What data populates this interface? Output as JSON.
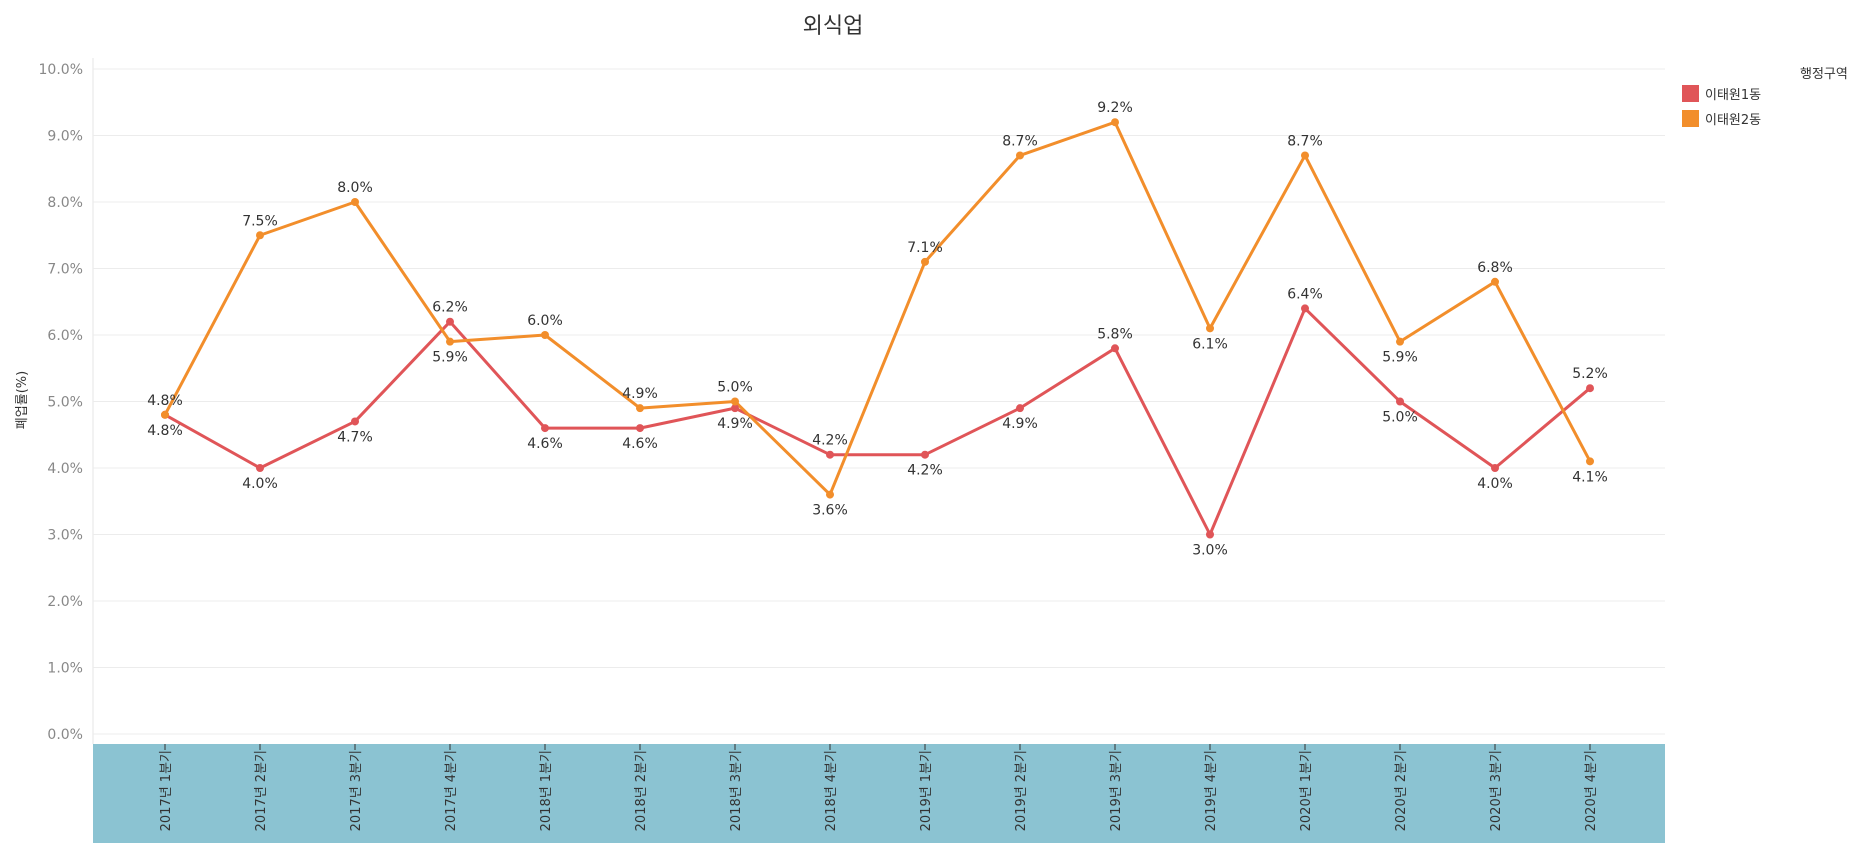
{
  "chart_data": {
    "type": "line",
    "title": "외식업",
    "ylabel": "폐업률(%)",
    "xlabel": "",
    "ylim": [
      0,
      10
    ],
    "yticks": [
      "0.0%",
      "1.0%",
      "2.0%",
      "3.0%",
      "4.0%",
      "5.0%",
      "6.0%",
      "7.0%",
      "8.0%",
      "9.0%",
      "10.0%"
    ],
    "grid": true,
    "legend_title": "행정구역",
    "legend_position": "top-right",
    "categories": [
      "2017년 1분기",
      "2017년 2분기",
      "2017년 3분기",
      "2017년 4분기",
      "2018년 1분기",
      "2018년 2분기",
      "2018년 3분기",
      "2018년 4분기",
      "2019년 1분기",
      "2019년 2분기",
      "2019년 3분기",
      "2019년 4분기",
      "2020년 1분기",
      "2020년 2분기",
      "2020년 3분기",
      "2020년 4분기"
    ],
    "series": [
      {
        "name": "이태원1동",
        "color": "#e05558",
        "values": [
          4.8,
          4.0,
          4.7,
          6.2,
          4.6,
          4.6,
          4.9,
          4.2,
          4.2,
          4.9,
          5.8,
          3.0,
          6.4,
          5.0,
          4.0,
          5.2
        ],
        "labels": [
          "4.8%",
          "4.0%",
          "4.7%",
          "6.2%",
          "4.6%",
          "4.6%",
          "4.9%",
          "4.2%",
          "4.2%",
          "4.9%",
          "5.8%",
          "3.0%",
          "6.4%",
          "5.0%",
          "4.0%",
          "5.2%"
        ],
        "label_pos": [
          "below",
          "below",
          "below",
          "above",
          "below",
          "below",
          "below",
          "above",
          "below",
          "below",
          "above",
          "below",
          "above",
          "below",
          "below",
          "above"
        ]
      },
      {
        "name": "이태원2동",
        "color": "#f28e2b",
        "values": [
          4.8,
          7.5,
          8.0,
          5.9,
          6.0,
          4.9,
          5.0,
          3.6,
          7.1,
          8.7,
          9.2,
          6.1,
          8.7,
          5.9,
          6.8,
          4.1
        ],
        "labels": [
          "4.8%",
          "7.5%",
          "8.0%",
          "5.9%",
          "6.0%",
          "4.9%",
          "5.0%",
          "3.6%",
          "7.1%",
          "8.7%",
          "9.2%",
          "6.1%",
          "8.7%",
          "5.9%",
          "6.8%",
          "4.1%"
        ],
        "label_pos": [
          "above",
          "above",
          "above",
          "below",
          "above",
          "above",
          "above",
          "below",
          "above",
          "above",
          "above",
          "below",
          "above",
          "below",
          "above",
          "below"
        ]
      }
    ]
  },
  "colors": {
    "axis_band": "#8bc3d2",
    "grid": "#ececec",
    "tick_text": "#888888",
    "label_text": "#333333"
  }
}
